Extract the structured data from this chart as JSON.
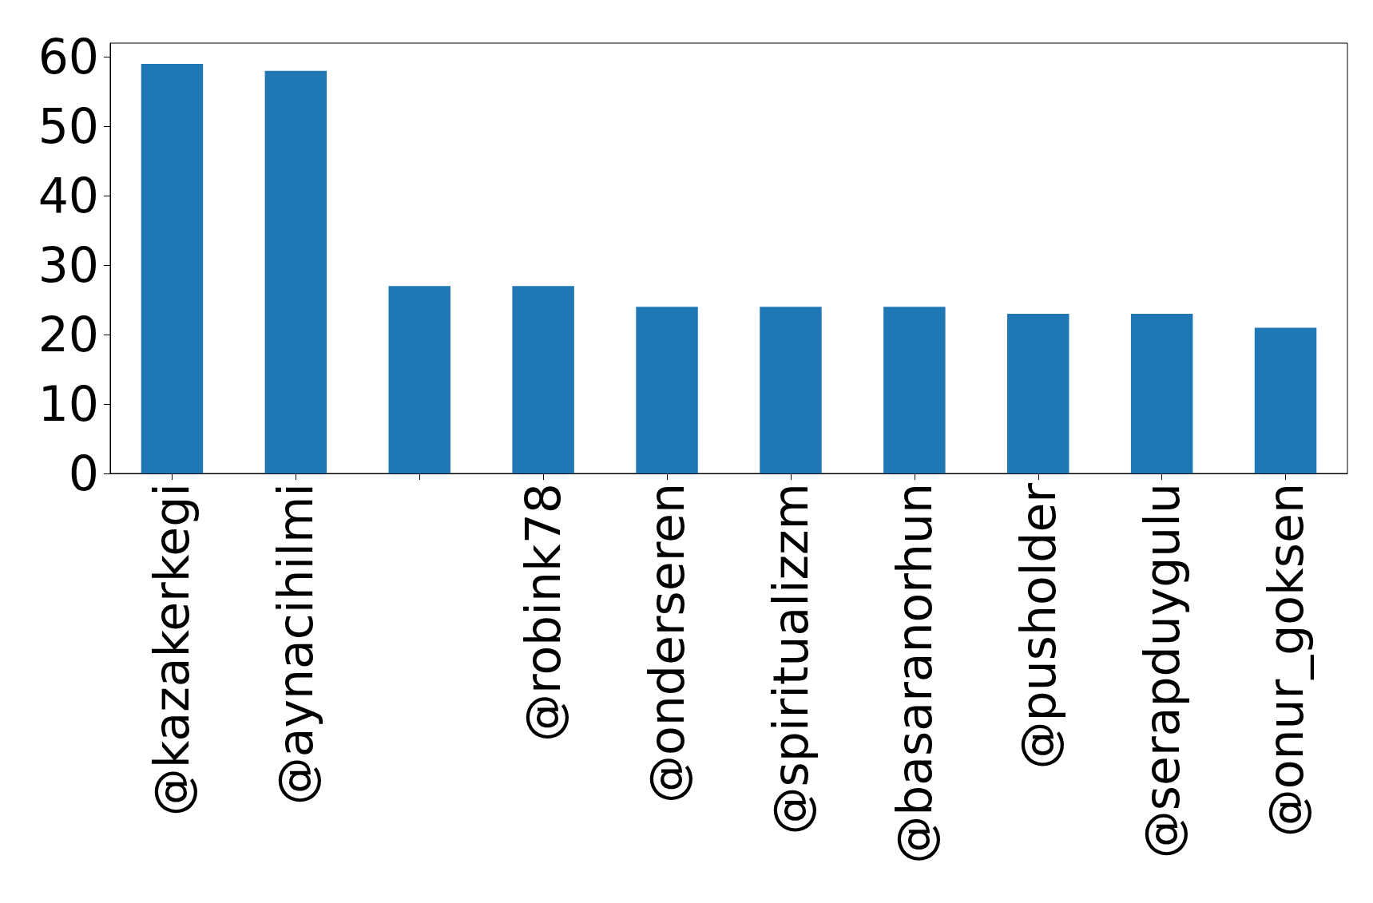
{
  "chart_data": {
    "type": "bar",
    "categories": [
      "@kazakerkegi",
      "@aynacihilmi",
      null,
      "@robink78",
      "@onderseren",
      "@spiritualizzm",
      "@basaranorhun",
      "@pusholder",
      "@serapduygulu",
      "@onur_goksen"
    ],
    "values": [
      59,
      58,
      27,
      27,
      24,
      24,
      24,
      23,
      23,
      21
    ],
    "color": "#1f77b4",
    "ylim": [
      0,
      62
    ],
    "yticks": [
      0,
      10,
      20,
      30,
      40,
      50,
      60
    ],
    "grid": false
  }
}
